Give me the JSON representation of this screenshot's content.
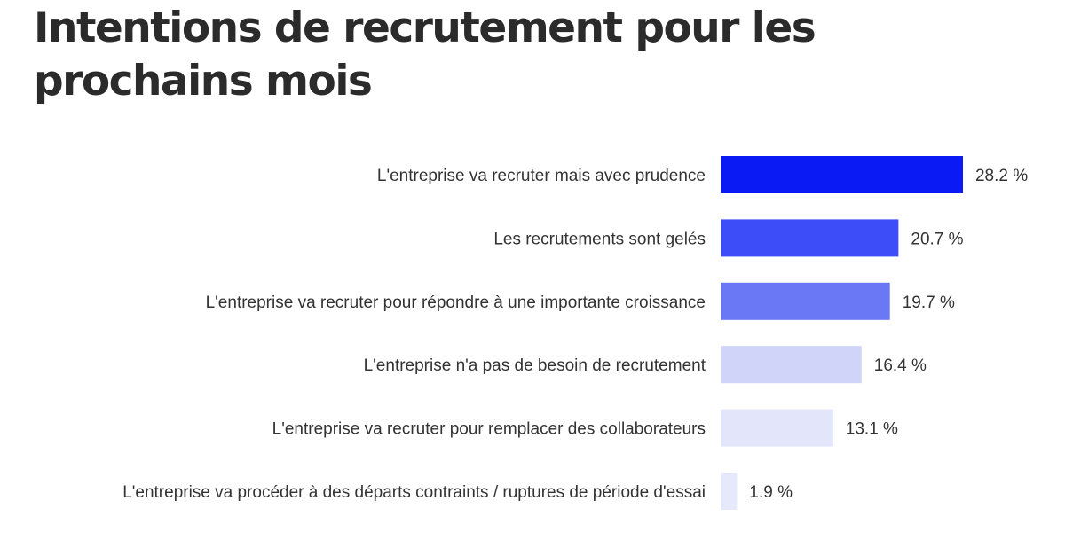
{
  "chart_data": {
    "type": "bar",
    "orientation": "horizontal",
    "title": "Intentions de recrutement pour les prochains mois",
    "categories": [
      "L'entreprise va recruter mais avec prudence",
      "Les recrutements sont gelés",
      "L'entreprise va recruter pour répondre à une importante croissance",
      "L'entreprise n'a pas de besoin de recrutement",
      "L'entreprise va recruter pour remplacer des collaborateurs",
      "L'entreprise va procéder à des départs contraints / ruptures de période d'essai"
    ],
    "values": [
      28.2,
      20.7,
      19.7,
      16.4,
      13.1,
      1.9
    ],
    "labels": [
      "28.2 %",
      "20.7 %",
      "19.7 %",
      "16.4 %",
      "13.1 %",
      "1.9 %"
    ],
    "colors": [
      "#0a1af5",
      "#3d4ef8",
      "#6a78f5",
      "#cfd4f8",
      "#e3e6fb",
      "#e6e8fb"
    ],
    "unit": "%",
    "grid": false,
    "legend": "none"
  }
}
